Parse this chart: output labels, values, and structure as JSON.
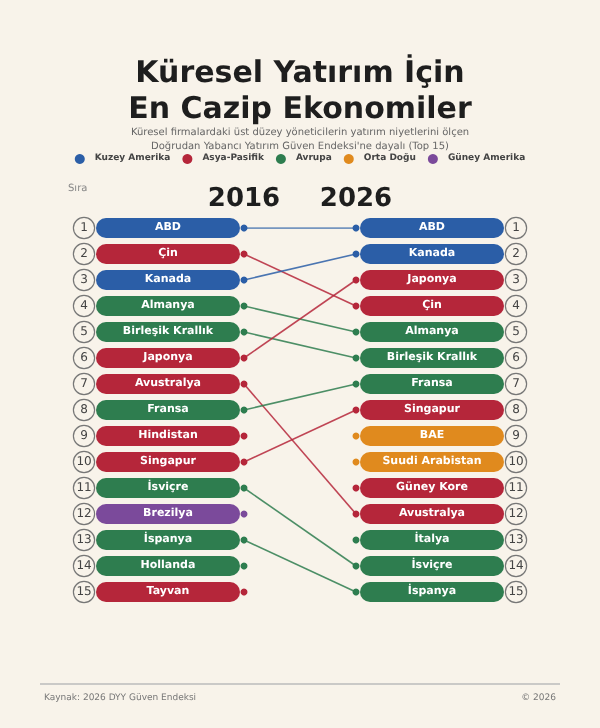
{
  "chart_data": {
    "type": "line",
    "title": "Küresel Yatırım İçin\nEn Cazip Ekonomiler",
    "subtitle": "Küresel firmalardaki üst düzey yöneticilerin yatırım niyetlerini ölçen\nDoğrudan Yabancı Yatırım Güven Endeksi'ne dayalı (Top 15)",
    "ylabel": "Sıra",
    "categories": [
      "2016",
      "2026"
    ],
    "ylim": [
      15,
      1
    ],
    "yticks": [
      1,
      2,
      3,
      4,
      5,
      6,
      7,
      8,
      9,
      10,
      11,
      12,
      13,
      14,
      15
    ],
    "y2lim": [
      15,
      1
    ],
    "y2ticks": [
      1,
      2,
      3,
      4,
      5,
      6,
      7,
      8,
      9,
      10,
      11,
      12,
      13,
      14,
      15
    ],
    "legend": "top",
    "marker": "circle",
    "annotations": [
      "Kaynak: 2026 DYY Güven Endeksi",
      "© 2026"
    ],
    "series": [
      {
        "name": "Kuzey Amerika",
        "color": "#2b5ea7",
        "values": [
          null,
          null
        ]
      },
      {
        "name": "Asya-Pasifik",
        "color": "#b5263a",
        "values": [
          null,
          null
        ]
      },
      {
        "name": "Avrupa",
        "color": "#2e7d4f",
        "values": [
          null,
          null
        ]
      },
      {
        "name": "Orta Doğu",
        "color": "#e08a1e",
        "values": [
          null,
          null
        ]
      },
      {
        "name": "Güney Amerika",
        "color": "#7b4a9b",
        "values": [
          null,
          null
        ]
      },
      {
        "name": "ABD",
        "color": "#2b5ea7",
        "values": [
          1,
          1
        ]
      },
      {
        "name": "Çin",
        "color": "#b5263a",
        "values": [
          2,
          4
        ]
      },
      {
        "name": "Kanada",
        "color": "#2b5ea7",
        "values": [
          3,
          2
        ]
      },
      {
        "name": "Almanya",
        "color": "#2e7d4f",
        "values": [
          4,
          5
        ]
      },
      {
        "name": "Birleşik Krallık",
        "color": "#2e7d4f",
        "values": [
          5,
          6
        ]
      },
      {
        "name": "Japonya",
        "color": "#b5263a",
        "values": [
          6,
          3
        ]
      },
      {
        "name": "Avustralya",
        "color": "#b5263a",
        "values": [
          7,
          12
        ]
      },
      {
        "name": "Fransa",
        "color": "#2e7d4f",
        "values": [
          8,
          7
        ]
      },
      {
        "name": "Hindistan",
        "color": "#b5263a",
        "values": [
          9,
          null
        ]
      },
      {
        "name": "Singapur",
        "color": "#b5263a",
        "values": [
          10,
          8
        ]
      },
      {
        "name": "İsviçre",
        "color": "#2e7d4f",
        "values": [
          11,
          14
        ]
      },
      {
        "name": "Brezilya",
        "color": "#7b4a9b",
        "values": [
          12,
          null
        ]
      },
      {
        "name": "İspanya",
        "color": "#2e7d4f",
        "values": [
          13,
          15
        ]
      },
      {
        "name": "Hollanda",
        "color": "#2e7d4f",
        "values": [
          14,
          null
        ]
      },
      {
        "name": "Tayvan",
        "color": "#b5263a",
        "values": [
          15,
          null
        ]
      },
      {
        "name": "BAE",
        "color": "#e08a1e",
        "values": [
          null,
          9
        ]
      },
      {
        "name": "Suudi Arabistan",
        "color": "#e08a1e",
        "values": [
          null,
          10
        ]
      },
      {
        "name": "Güney Kore",
        "color": "#b5263a",
        "values": [
          null,
          11
        ]
      },
      {
        "name": "İtalya",
        "color": "#2e7d4f",
        "values": [
          null,
          13
        ]
      }
    ]
  }
}
